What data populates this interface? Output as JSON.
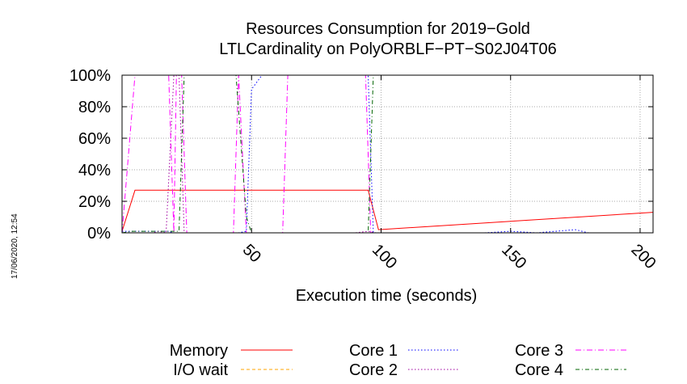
{
  "chart_data": {
    "type": "line",
    "title": [
      "Resources Consumption for 2019−Gold",
      "LTLCardinality on PolyORBLF−PT−S02J04T06"
    ],
    "xlabel": "Execution time (seconds)",
    "ylabel": "",
    "xlim": [
      0,
      205
    ],
    "ylim": [
      0,
      100
    ],
    "x_ticks": [
      50,
      100,
      150,
      200
    ],
    "y_ticks": [
      {
        "value": 0,
        "label": "0%"
      },
      {
        "value": 20,
        "label": "20%"
      },
      {
        "value": 40,
        "label": "40%"
      },
      {
        "value": 60,
        "label": "60%"
      },
      {
        "value": 80,
        "label": "80%"
      },
      {
        "value": 100,
        "label": "100%"
      }
    ],
    "grid": true,
    "legend_position": "bottom",
    "timestamp": "17/06/2020, 12:54",
    "series": [
      {
        "name": "Memory",
        "color": "#ff0000",
        "dash": "solid",
        "points": [
          [
            0,
            1
          ],
          [
            5,
            27
          ],
          [
            95,
            27
          ],
          [
            99,
            2
          ],
          [
            205,
            13
          ]
        ]
      },
      {
        "name": "I/O wait",
        "color": "#ffa500",
        "dash": "dashed",
        "points": [
          [
            0,
            0
          ],
          [
            205,
            0
          ]
        ]
      },
      {
        "name": "Core 1",
        "color": "#0000ff",
        "dash": "dotted",
        "points": [
          [
            0,
            1
          ],
          [
            5,
            1
          ],
          [
            18,
            1
          ],
          [
            20,
            0
          ],
          [
            22,
            0
          ],
          [
            45,
            0
          ],
          [
            48,
            1
          ],
          [
            50,
            91
          ],
          [
            54,
            100
          ],
          [
            95,
            100
          ],
          [
            97,
            0
          ],
          [
            100,
            0
          ],
          [
            140,
            0
          ],
          [
            150,
            1
          ],
          [
            160,
            0
          ],
          [
            175,
            2
          ],
          [
            180,
            0
          ],
          [
            205,
            0
          ]
        ]
      },
      {
        "name": "Core 2",
        "color": "#a000a0",
        "dash": "dotted",
        "points": [
          [
            0,
            0
          ],
          [
            12,
            0
          ],
          [
            14,
            1
          ],
          [
            17,
            0
          ],
          [
            20,
            100
          ],
          [
            22,
            100
          ],
          [
            24,
            0
          ],
          [
            60,
            0
          ],
          [
            63,
            0
          ],
          [
            90,
            0
          ],
          [
            95,
            1
          ],
          [
            98,
            0
          ],
          [
            205,
            0
          ]
        ]
      },
      {
        "name": "Core 3",
        "color": "#ff00ff",
        "dash": "dashdot",
        "points": [
          [
            0,
            0
          ],
          [
            5,
            100
          ],
          [
            18,
            100
          ],
          [
            20,
            0
          ],
          [
            21,
            100
          ],
          [
            23,
            100
          ],
          [
            25,
            0
          ],
          [
            43,
            0
          ],
          [
            45,
            100
          ],
          [
            48,
            0
          ],
          [
            62,
            0
          ],
          [
            64,
            100
          ],
          [
            94,
            100
          ],
          [
            96,
            0
          ],
          [
            205,
            0
          ]
        ]
      },
      {
        "name": "Core 4",
        "color": "#006400",
        "dash": "dashdot2",
        "points": [
          [
            0,
            0
          ],
          [
            4,
            1
          ],
          [
            22,
            1
          ],
          [
            24,
            100
          ],
          [
            44,
            100
          ],
          [
            48,
            10
          ],
          [
            50,
            0
          ],
          [
            95,
            0
          ],
          [
            97,
            100
          ],
          [
            205,
            100
          ]
        ]
      }
    ]
  }
}
